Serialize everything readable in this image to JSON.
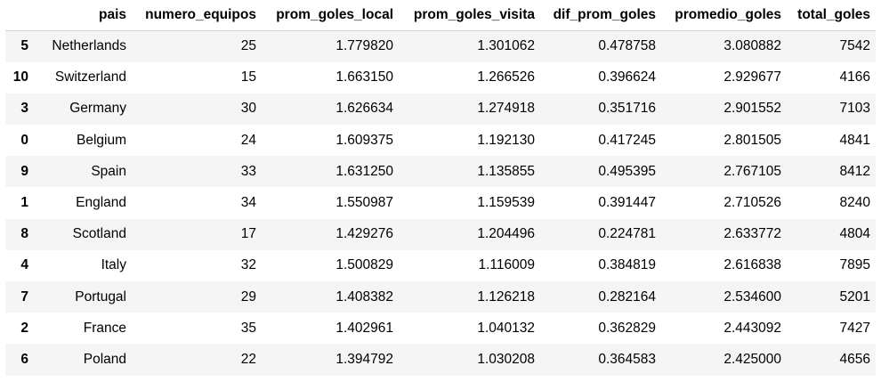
{
  "table": {
    "index_header": "",
    "columns": [
      "pais",
      "numero_equipos",
      "prom_goles_local",
      "prom_goles_visita",
      "dif_prom_goles",
      "promedio_goles",
      "total_goles"
    ],
    "rows": [
      {
        "index": "5",
        "cells": [
          "Netherlands",
          "25",
          "1.779820",
          "1.301062",
          "0.478758",
          "3.080882",
          "7542"
        ]
      },
      {
        "index": "10",
        "cells": [
          "Switzerland",
          "15",
          "1.663150",
          "1.266526",
          "0.396624",
          "2.929677",
          "4166"
        ]
      },
      {
        "index": "3",
        "cells": [
          "Germany",
          "30",
          "1.626634",
          "1.274918",
          "0.351716",
          "2.901552",
          "7103"
        ]
      },
      {
        "index": "0",
        "cells": [
          "Belgium",
          "24",
          "1.609375",
          "1.192130",
          "0.417245",
          "2.801505",
          "4841"
        ]
      },
      {
        "index": "9",
        "cells": [
          "Spain",
          "33",
          "1.631250",
          "1.135855",
          "0.495395",
          "2.767105",
          "8412"
        ]
      },
      {
        "index": "1",
        "cells": [
          "England",
          "34",
          "1.550987",
          "1.159539",
          "0.391447",
          "2.710526",
          "8240"
        ]
      },
      {
        "index": "8",
        "cells": [
          "Scotland",
          "17",
          "1.429276",
          "1.204496",
          "0.224781",
          "2.633772",
          "4804"
        ]
      },
      {
        "index": "4",
        "cells": [
          "Italy",
          "32",
          "1.500829",
          "1.116009",
          "0.384819",
          "2.616838",
          "7895"
        ]
      },
      {
        "index": "7",
        "cells": [
          "Portugal",
          "29",
          "1.408382",
          "1.126218",
          "0.282164",
          "2.534600",
          "5201"
        ]
      },
      {
        "index": "2",
        "cells": [
          "France",
          "35",
          "1.402961",
          "1.040132",
          "0.362829",
          "2.443092",
          "7427"
        ]
      },
      {
        "index": "6",
        "cells": [
          "Poland",
          "22",
          "1.394792",
          "1.030208",
          "0.364583",
          "2.425000",
          "4656"
        ]
      }
    ]
  },
  "colors": {
    "stripe": "#f5f5f5",
    "header_border": "#d2d2d2",
    "text": "#000000"
  }
}
